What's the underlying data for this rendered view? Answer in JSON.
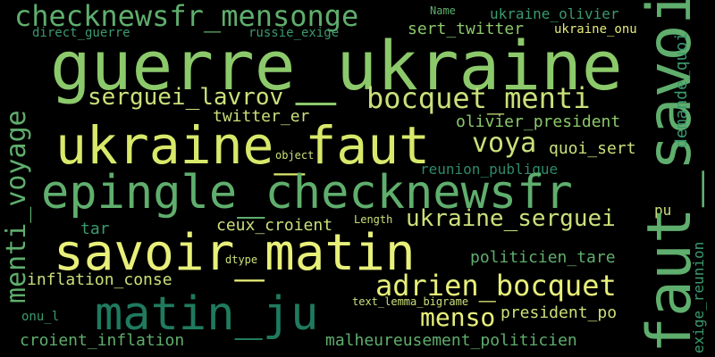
{
  "palette": {
    "background": "#000000",
    "light_green": "#c9e07a",
    "green": "#8cc96b",
    "mid_green": "#5fae6d",
    "teal": "#3b9a6e",
    "dark_teal": "#1f7a5e",
    "deep_teal": "#166b57"
  },
  "words": {
    "guerre_ukraine": "guerre_ukraine",
    "checknewsfr_mensonge": "checknewsfr_mensonge",
    "ukraine_faut": "ukraine_faut",
    "epingle_checknewsfr": "epingle_checknewsfr",
    "savoir_matin": "savoir_matin",
    "matin_ju": "matin_ju",
    "faut_savoir": "faut_savoir",
    "serguei_lavrov": "serguei_lavrov",
    "bocquet_menti": "bocquet_menti",
    "menti_voyage": "menti_voyage",
    "adrien_bocquet": "adrien_bocquet",
    "ukraine_serguei": "ukraine_serguei",
    "voya": "voya",
    "menso": "menso",
    "direct_guerre": "direct_guerre",
    "russie_exige": "russie_exige",
    "name": "Name",
    "ukraine_olivier": "ukraine_olivier",
    "sert_twitter": "sert_twitter",
    "ukraine_onu": "ukraine_onu",
    "twitter_er": "twitter_er",
    "olivier_president": "olivier_president",
    "quoi_sert": "quoi_sert",
    "object": "object",
    "demande_quoi": "demande_quoi",
    "reunion_publique": "reunion_publique",
    "ceux_croient": "ceux_croient",
    "tar": "tar",
    "length": "Length",
    "pu": "pu",
    "dtype": "dtype",
    "politicien_tare": "politicien_tare",
    "inflation_conse": "inflation_conse",
    "exige_reunion": "exige_reunion",
    "text_lemma_bigrame": "text_lemma_bigrame",
    "onu_l": "onu_l",
    "president_po": "president_po",
    "croient_inflation": "croient_inflation",
    "malheureusement_politicien": "malheureusement_politicien"
  }
}
